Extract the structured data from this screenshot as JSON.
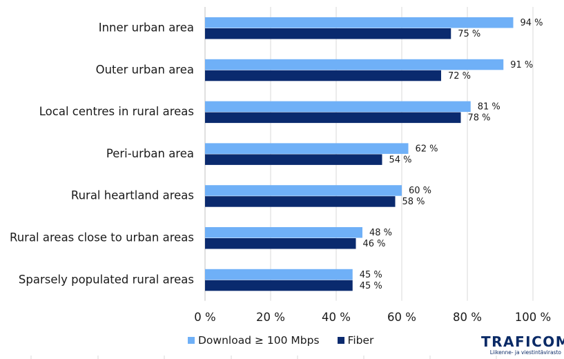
{
  "chart_data": {
    "type": "bar",
    "orientation": "horizontal",
    "categories": [
      "Inner urban area",
      "Outer urban area",
      "Local centres in rural areas",
      "Peri-urban area",
      "Rural heartland areas",
      "Rural areas close to urban areas",
      "Sparsely populated rural areas"
    ],
    "series": [
      {
        "name": "Download ≥ 100 Mbps",
        "color": "#6fb0f7",
        "values": [
          94,
          91,
          81,
          62,
          60,
          48,
          45
        ],
        "labels": [
          "94 %",
          "91 %",
          "81 %",
          "62 %",
          "60 %",
          "48 %",
          "45 %"
        ]
      },
      {
        "name": "Fiber",
        "color": "#0a2a6e",
        "values": [
          75,
          72,
          78,
          54,
          58,
          46,
          45
        ],
        "labels": [
          "75 %",
          "72 %",
          "78 %",
          "54 %",
          "58 %",
          "46 %",
          "45 %"
        ]
      }
    ],
    "xlim": [
      0,
      100
    ],
    "xticks": [
      0,
      20,
      40,
      60,
      80,
      100
    ],
    "xtick_labels": [
      "0 %",
      "20 %",
      "40 %",
      "60 %",
      "80 %",
      "100 %"
    ],
    "grid": "vertical",
    "legend_position": "bottom"
  },
  "logo": {
    "text": "TRAFICOM",
    "subtitle": "Liikenne- ja viestintävirasto"
  }
}
